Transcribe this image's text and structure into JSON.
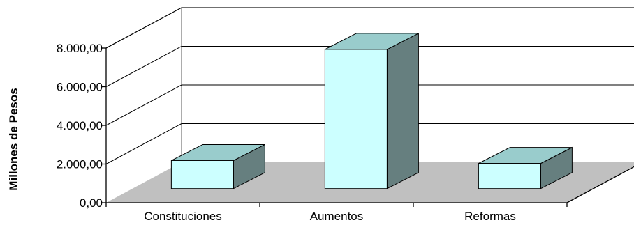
{
  "chart_data": {
    "type": "bar",
    "categories": [
      "Constituciones",
      "Aumentos",
      "Reformas"
    ],
    "values": [
      1450,
      7200,
      1300
    ],
    "title": "",
    "xlabel": "",
    "ylabel": "Millones de Pesos",
    "ylim": [
      0,
      8000
    ],
    "yticks": [
      0,
      2000,
      4000,
      6000,
      8000
    ],
    "ytick_labels": [
      "0,00",
      "2.000,00",
      "4.000,00",
      "6.000,00",
      "8.000,00"
    ],
    "grid": true,
    "three_d": true,
    "colors": {
      "bar_front": "#ccffff",
      "bar_top": "#99cccc",
      "bar_side": "#667f7f",
      "floor": "#c0c0c0",
      "grid": "#000000",
      "wall": "#808080"
    }
  }
}
